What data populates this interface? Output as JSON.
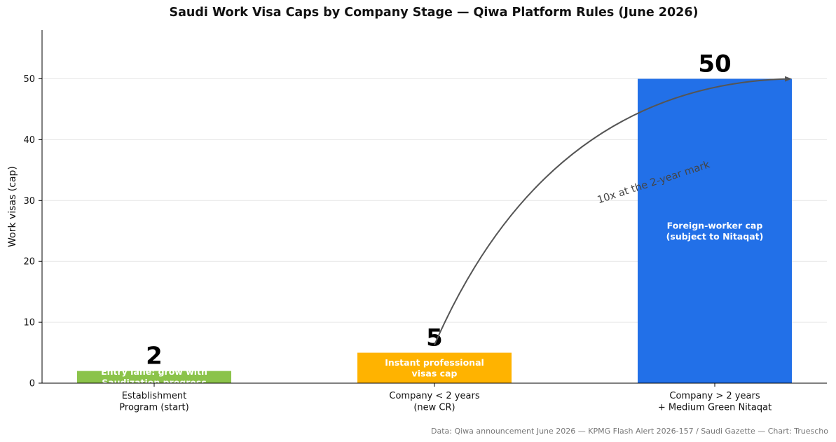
{
  "chart_data": {
    "type": "bar",
    "title": "Saudi Work Visa Caps by Company Stage — Qiwa Platform Rules (June 2026)",
    "ylabel": "Work visas (cap)",
    "xlabel": "",
    "ylim": [
      0,
      58
    ],
    "yticks": [
      0,
      10,
      20,
      30,
      40,
      50
    ],
    "grid": "horizontal",
    "categories": [
      [
        "Establishment",
        "Program (start)"
      ],
      [
        "Company < 2 years",
        "(new CR)"
      ],
      [
        "Company > 2 years",
        "+ Medium Green Nitaqat"
      ]
    ],
    "values": [
      2,
      5,
      50
    ],
    "value_labels": [
      "2",
      "5",
      "50"
    ],
    "bar_colors": [
      "#8bc34a",
      "#ffb300",
      "#2270e8"
    ],
    "inner_labels": [
      [
        "Entry lane: grow with",
        "Saudization progress"
      ],
      [
        "Instant professional",
        "visas cap"
      ],
      [
        "Foreign-worker cap",
        "(subject to Nitaqat)"
      ]
    ],
    "annotation": {
      "text": "10x at the 2-year mark",
      "from_category": 1,
      "from_value": 6.3,
      "to_category": 2.27,
      "to_value": 50
    },
    "source": "Data: Qiwa announcement June 2026 — KPMG Flash Alert 2026-157 / Saudi Gazette — Chart: Truescho"
  }
}
